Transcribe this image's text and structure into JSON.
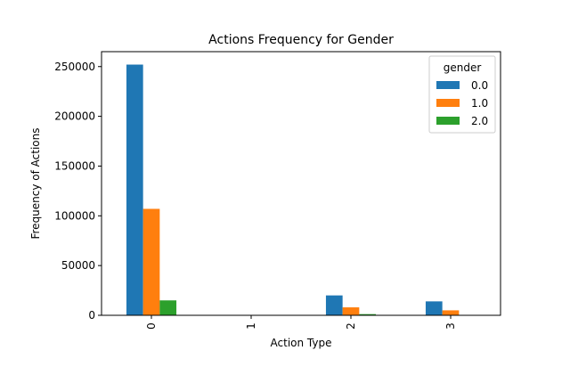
{
  "chart_data": {
    "type": "bar",
    "title": "Actions Frequency for Gender",
    "xlabel": "Action Type",
    "ylabel": "Frequency of Actions",
    "categories": [
      "0",
      "1",
      "2",
      "3"
    ],
    "series": [
      {
        "name": "0.0",
        "color": "#1f77b4",
        "values": [
          252000,
          0,
          20000,
          14000
        ]
      },
      {
        "name": "1.0",
        "color": "#ff7f0e",
        "values": [
          107000,
          0,
          8000,
          5000
        ]
      },
      {
        "name": "2.0",
        "color": "#2ca02c",
        "values": [
          15000,
          0,
          1200,
          0
        ]
      }
    ],
    "ylim": [
      0,
      265000
    ],
    "yticks": [
      0,
      50000,
      100000,
      150000,
      200000,
      250000
    ],
    "ytick_labels": [
      "0",
      "50000",
      "100000",
      "150000",
      "200000",
      "250000"
    ],
    "legend": {
      "title": "gender",
      "placement": "top-right"
    },
    "grid": false
  }
}
